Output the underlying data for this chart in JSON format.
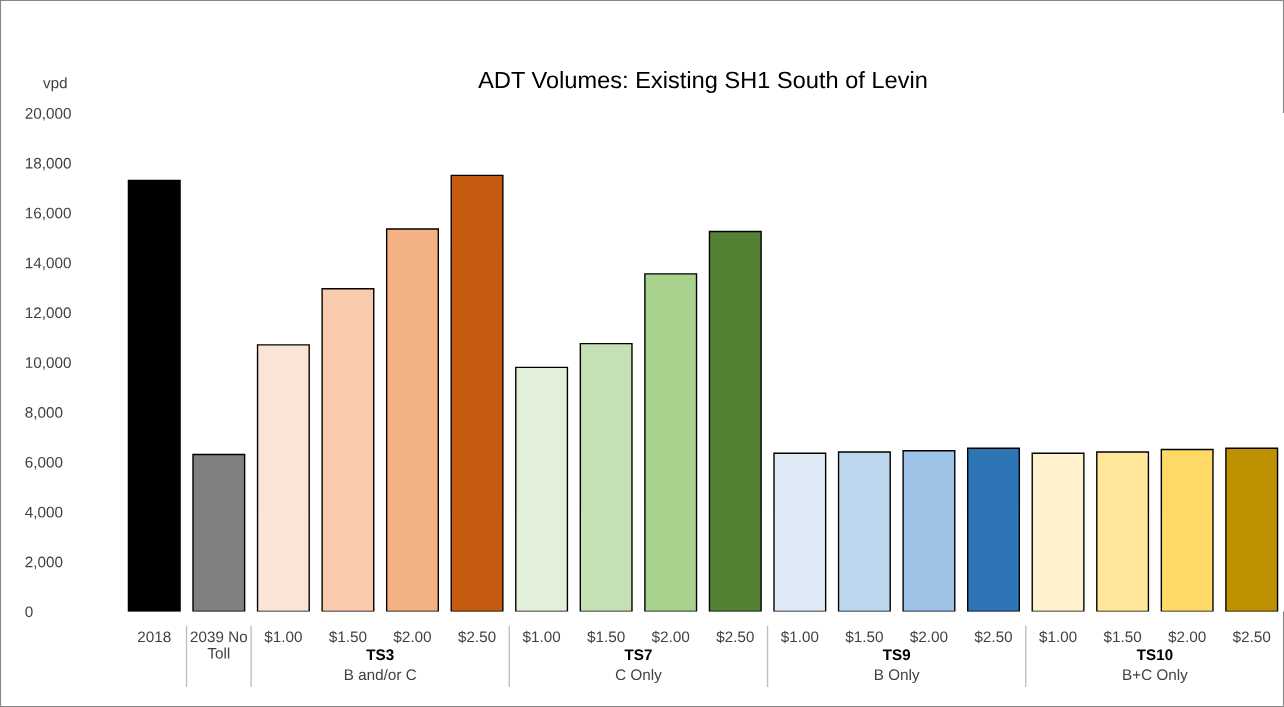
{
  "chart_data": {
    "type": "bar",
    "title": "ADT Volumes: Existing SH1 South of Levin",
    "ylabel": "vpd",
    "categories": [
      "2018",
      "2039 No\nToll",
      "$1.00",
      "$1.50",
      "$2.00",
      "$2.50",
      "$1.00",
      "$1.50",
      "$2.00",
      "$2.50",
      "$1.00",
      "$1.50",
      "$2.00",
      "$2.50",
      "$1.00",
      "$1.50",
      "$2.00",
      "$2.50"
    ],
    "values": [
      17300,
      6300,
      10700,
      12950,
      15350,
      17500,
      9800,
      10750,
      13550,
      15250,
      6350,
      6400,
      6450,
      6550,
      6350,
      6400,
      6500,
      6550
    ],
    "colors": [
      "#000000",
      "#808080",
      "#fbe3d6",
      "#f8cbad",
      "#f4b183",
      "#c55a11",
      "#e2efda",
      "#c5e0b4",
      "#a9d18e",
      "#548235",
      "#deebf7",
      "#bdd7ee",
      "#9dc3e6",
      "#2e75b6",
      "#fff2cc",
      "#ffe699",
      "#ffd966",
      "#bf9000"
    ],
    "ylim": [
      0,
      20000
    ],
    "yticks": [
      0,
      {
        "value": 2000,
        "label": "2,000"
      },
      {
        "value": 4000,
        "label": "4,000"
      },
      {
        "value": 6000,
        "label": "6,000"
      },
      {
        "value": 8000,
        "label": "8,000"
      },
      {
        "value": 10000,
        "label": "10,000"
      },
      {
        "value": 12000,
        "label": "12,000"
      },
      {
        "value": 14000,
        "label": "14,000"
      },
      {
        "value": 16000,
        "label": "16,000"
      },
      {
        "value": 18000,
        "label": "18,000"
      },
      {
        "value": 20000,
        "label": "20,000"
      }
    ],
    "annotations": [
      "TS3\nB and/or C",
      "TS7\nC Only",
      "TS9\nB Only",
      "TS10\nB+C Only"
    ],
    "grid": false,
    "legend": false
  }
}
